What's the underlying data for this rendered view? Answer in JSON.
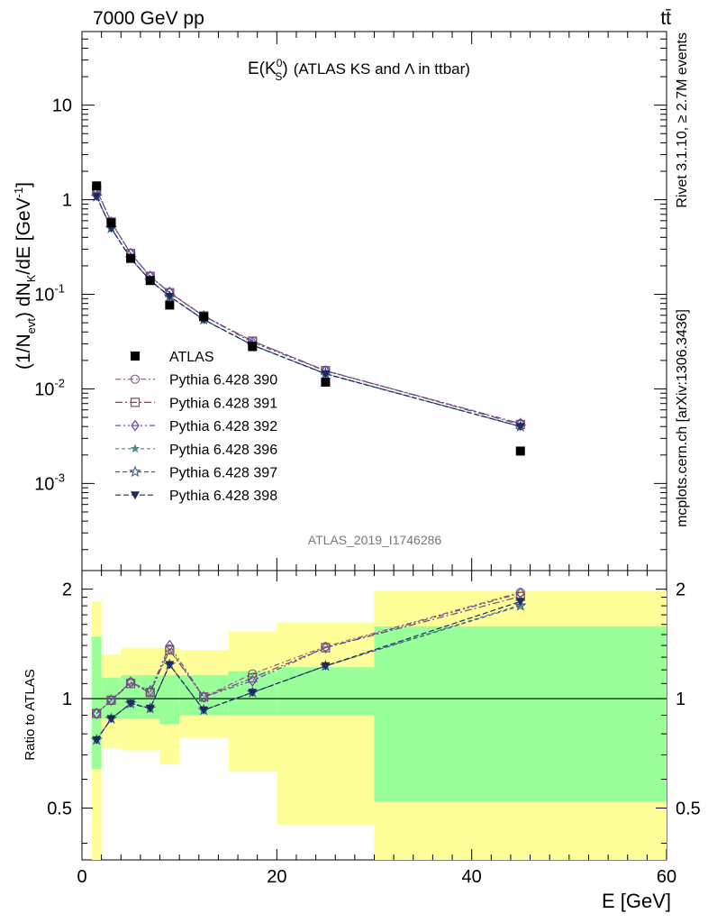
{
  "header": {
    "left": "7000 GeV pp",
    "right": "tt̄"
  },
  "plot_title": {
    "main": "E(K",
    "sup": "0",
    "sub": "S",
    "close": ")",
    "rest": "(ATLAS KS and Λ in ttbar)"
  },
  "side_labels": {
    "rivet": "Rivet 3.1.10, ≥ 2.7M events",
    "mcplots": "mcplots.cern.ch [arXiv:1306.3436]"
  },
  "analysis_id": "ATLAS_2019_I1746286",
  "ylabel_parts": {
    "a": "(1/N",
    "a_sub": "evt",
    "b": ") dN",
    "b_sub": "K",
    "c": "/dE [GeV",
    "c_sup": "-1",
    "d": "]"
  },
  "ratio_ylabel": "Ratio to ATLAS",
  "xlabel": "E [GeV]",
  "colors": {
    "data": "#000000",
    "p390": "#8e5e84",
    "p391": "#7a4e5e",
    "p392": "#6a4aa8",
    "p396": "#4e8a8e",
    "p397": "#3e5e8a",
    "p398": "#1e2a5e",
    "band_inner": "#99ff99",
    "band_outer": "#ffff99"
  },
  "chart_data": [
    {
      "type": "line",
      "yscale": "log",
      "xlim": [
        0,
        60
      ],
      "ylim": [
        0.00012,
        60
      ],
      "y_ticks": [
        "10",
        "1",
        "10^-1",
        "10^-2",
        "10^-3"
      ],
      "x_edges": [
        0,
        2,
        4,
        6,
        8,
        10,
        15,
        20,
        30,
        60
      ],
      "x": [
        1.5,
        3,
        5,
        7,
        9,
        12.5,
        17.5,
        25,
        45
      ],
      "legend_position": "left-middle",
      "series": [
        {
          "name": "ATLAS",
          "marker": "filled-square",
          "color_key": "data",
          "values": [
            1.4,
            0.57,
            0.24,
            0.14,
            0.077,
            0.058,
            0.028,
            0.0118,
            0.0022
          ]
        },
        {
          "name": "Pythia 6.428 390",
          "marker": "open-circle",
          "dash": "6,3,2,3",
          "color_key": "p390",
          "values": [
            1.28,
            0.58,
            0.27,
            0.155,
            0.104,
            0.059,
            0.032,
            0.0156,
            0.0043
          ]
        },
        {
          "name": "Pythia 6.428 391",
          "marker": "open-square",
          "dash": "8,3,2,3",
          "color_key": "p391",
          "values": [
            1.28,
            0.58,
            0.27,
            0.155,
            0.104,
            0.059,
            0.032,
            0.0156,
            0.0042
          ]
        },
        {
          "name": "Pythia 6.428 392",
          "marker": "open-diamond",
          "dash": "6,3,2,3,2,3",
          "color_key": "p392",
          "values": [
            1.28,
            0.58,
            0.27,
            0.155,
            0.105,
            0.059,
            0.031,
            0.0155,
            0.0043
          ]
        },
        {
          "name": "Pythia 6.428 396",
          "marker": "filled-star",
          "dash": "4,3",
          "color_key": "p396",
          "values": [
            1.08,
            0.5,
            0.24,
            0.14,
            0.095,
            0.054,
            0.029,
            0.0144,
            0.004
          ]
        },
        {
          "name": "Pythia 6.428 397",
          "marker": "open-star",
          "dash": "5,3",
          "color_key": "p397",
          "values": [
            1.08,
            0.5,
            0.24,
            0.14,
            0.095,
            0.054,
            0.029,
            0.0145,
            0.004
          ]
        },
        {
          "name": "Pythia 6.428 398",
          "marker": "filled-triangle-down",
          "dash": "6,3",
          "color_key": "p398",
          "values": [
            1.08,
            0.5,
            0.24,
            0.14,
            0.095,
            0.054,
            0.029,
            0.0144,
            0.004
          ]
        }
      ]
    },
    {
      "type": "line",
      "title": "Ratio to ATLAS",
      "xlim": [
        0,
        60
      ],
      "ylim": [
        0.36,
        2.25
      ],
      "y_ticks": [
        0.5,
        1,
        2
      ],
      "x": [
        1.5,
        3,
        5,
        7,
        9,
        12.5,
        17.5,
        25,
        45
      ],
      "reference_line": 1,
      "bands": {
        "x_edges": [
          1,
          2,
          4,
          6,
          8,
          10,
          15,
          20,
          30,
          60
        ],
        "inner_lo": [
          0.64,
          0.88,
          0.88,
          0.88,
          0.85,
          0.9,
          0.9,
          0.9,
          0.52
        ],
        "inner_hi": [
          1.48,
          1.14,
          1.16,
          1.16,
          1.16,
          1.16,
          1.19,
          1.22,
          1.58
        ],
        "outer_lo": [
          0.36,
          0.73,
          0.72,
          0.72,
          0.66,
          0.78,
          0.63,
          0.45,
          0.36
        ],
        "outer_hi": [
          1.85,
          1.32,
          1.38,
          1.38,
          1.38,
          1.36,
          1.53,
          1.62,
          1.98
        ]
      },
      "series": [
        {
          "name": "Pythia 6.428 390",
          "values": [
            0.91,
            0.99,
            1.11,
            1.04,
            1.37,
            1.01,
            1.17,
            1.39,
            1.96
          ]
        },
        {
          "name": "Pythia 6.428 391",
          "values": [
            0.91,
            0.99,
            1.1,
            1.04,
            1.36,
            1.01,
            1.14,
            1.38,
            1.91
          ]
        },
        {
          "name": "Pythia 6.428 392",
          "values": [
            0.91,
            0.99,
            1.11,
            1.05,
            1.4,
            1.01,
            1.12,
            1.38,
            1.95
          ]
        },
        {
          "name": "Pythia 6.428 396",
          "values": [
            0.77,
            0.88,
            0.97,
            0.94,
            1.24,
            0.93,
            1.04,
            1.23,
            1.81
          ]
        },
        {
          "name": "Pythia 6.428 397",
          "values": [
            0.77,
            0.88,
            0.97,
            0.94,
            1.24,
            0.93,
            1.04,
            1.23,
            1.8
          ]
        },
        {
          "name": "Pythia 6.428 398",
          "values": [
            0.77,
            0.88,
            0.97,
            0.94,
            1.24,
            0.93,
            1.04,
            1.23,
            1.85
          ]
        }
      ]
    }
  ]
}
